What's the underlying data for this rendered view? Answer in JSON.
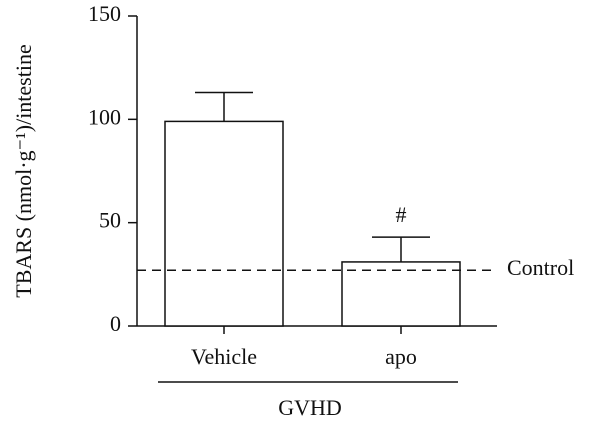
{
  "chart_data": {
    "type": "bar",
    "y_label": "TBARS (nmol·g⁻¹)/intestine",
    "categories": [
      "Vehicle",
      "apo"
    ],
    "values": [
      99,
      31
    ],
    "errors": [
      14,
      12
    ],
    "color": "#ffffff",
    "ylim": [
      0,
      150
    ],
    "yticks": [
      0,
      50,
      100,
      150
    ],
    "reference_line": {
      "value": 27,
      "label": "Control"
    },
    "annotations": [
      {
        "text": "#"
      }
    ],
    "group_label": "GVHD"
  }
}
